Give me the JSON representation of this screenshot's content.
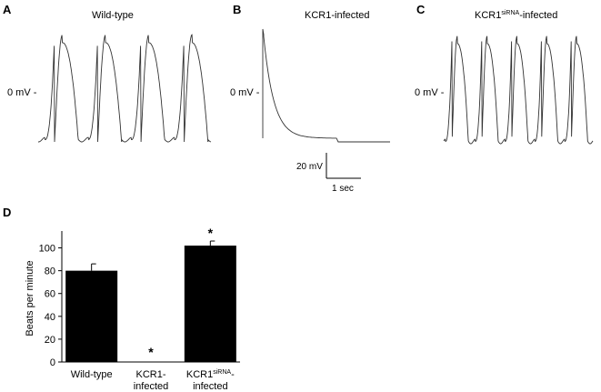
{
  "panels": {
    "a": {
      "letter": "A",
      "title": "Wild-type",
      "zero_label": "0 mV -"
    },
    "b": {
      "letter": "B",
      "title": "KCR1-infected",
      "zero_label": "0 mV -"
    },
    "c": {
      "letter": "C",
      "title_main": "KCR1",
      "title_sup": "siRNA",
      "title_rest": "-infected",
      "zero_label": "0 mV -"
    },
    "scale_bar": {
      "voltage": "20 mV",
      "time": "1 sec"
    },
    "d": {
      "letter": "D"
    }
  },
  "chart_data": [
    {
      "type": "line",
      "panel": "A",
      "title": "Wild-type",
      "description_series": "action potential trace",
      "beats_shown": 4
    },
    {
      "type": "line",
      "panel": "B",
      "title": "KCR1-infected",
      "beats_shown": 1
    },
    {
      "type": "line",
      "panel": "C",
      "title": "KCR1siRNA-infected",
      "beats_shown": 5
    },
    {
      "type": "bar",
      "panel": "D",
      "ylabel": "Beats per minute",
      "ylim": [
        0,
        110
      ],
      "yticks": [
        0,
        20,
        40,
        60,
        80,
        100
      ],
      "categories": [
        {
          "line1": "Wild-type",
          "line2": ""
        },
        {
          "line1": "KCR1-",
          "line2": "infected"
        },
        {
          "line1_main": "KCR1",
          "line1_sup": "siRNA",
          "line1_rest": "-",
          "line2": "infected"
        }
      ],
      "values": [
        80,
        0,
        102
      ],
      "errors": [
        6,
        0,
        4
      ],
      "significance": [
        "",
        "*",
        "*"
      ]
    }
  ]
}
